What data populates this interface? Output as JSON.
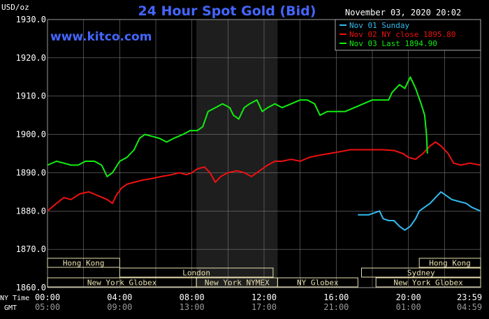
{
  "chart_data": {
    "type": "line",
    "title": "24 Hour Spot Gold (Bid)",
    "watermark": "www.kitco.com",
    "date_stamp": "November 03, 2020 20:02",
    "ylabel": "USD/oz",
    "ylim": [
      1860,
      1930
    ],
    "y_ticks": [
      "1930.0",
      "1920.0",
      "1910.0",
      "1900.0",
      "1890.0",
      "1880.0",
      "1870.0",
      "1860.0"
    ],
    "y_tick_values": [
      1930,
      1920,
      1910,
      1900,
      1890,
      1880,
      1870,
      1860
    ],
    "xlim": [
      0,
      24
    ],
    "x_ticks_ny": [
      "00:00",
      "04:00",
      "08:00",
      "12:00",
      "16:00",
      "20:00",
      "23:59"
    ],
    "x_ticks_gmt": [
      "05:00",
      "09:00",
      "13:00",
      "17:00",
      "21:00",
      "01:00",
      "04:59"
    ],
    "x_tick_values": [
      0,
      4,
      8,
      12,
      16,
      20,
      23.98
    ],
    "ny_time_label": "NY Time",
    "gmt_label": "GMT",
    "grid": true,
    "legend_position": "top-right",
    "shaded_region": [
      8.25,
      12.75
    ],
    "colors": {
      "sunday": "#33bbee",
      "close": "#ee1111",
      "last": "#11ee11",
      "grid": "#777777",
      "text": "#ffffff",
      "title": "#4466ff",
      "session_fill": "#e8e0b0",
      "session_text": "#2a2a2a",
      "shade": "#1e1e1e"
    },
    "series": [
      {
        "name": "Nov 01 Sunday",
        "legend_label": "Nov 01 Sunday",
        "color": "#33bbee",
        "points": [
          [
            17.2,
            1879
          ],
          [
            17.8,
            1879
          ],
          [
            18.4,
            1880
          ],
          [
            18.6,
            1878
          ],
          [
            18.9,
            1877.5
          ],
          [
            19.2,
            1877.5
          ],
          [
            19.5,
            1876
          ],
          [
            19.8,
            1875
          ],
          [
            20.1,
            1876
          ],
          [
            20.4,
            1878
          ],
          [
            20.6,
            1880
          ],
          [
            20.9,
            1881
          ],
          [
            21.2,
            1882
          ],
          [
            21.5,
            1883.5
          ],
          [
            21.8,
            1885
          ],
          [
            22.1,
            1884
          ],
          [
            22.4,
            1883
          ],
          [
            22.8,
            1882.5
          ],
          [
            23.2,
            1882
          ],
          [
            23.5,
            1881
          ],
          [
            23.98,
            1880
          ]
        ]
      },
      {
        "name": "Nov 02 NY close 1895.80",
        "legend_label": "Nov 02 NY close 1895.80",
        "color": "#ee1111",
        "points": [
          [
            0,
            1880
          ],
          [
            0.5,
            1882
          ],
          [
            0.9,
            1883.5
          ],
          [
            1.3,
            1883
          ],
          [
            1.8,
            1884.5
          ],
          [
            2.3,
            1885
          ],
          [
            2.8,
            1884
          ],
          [
            3.3,
            1883
          ],
          [
            3.6,
            1882
          ],
          [
            3.8,
            1884
          ],
          [
            4.1,
            1886
          ],
          [
            4.4,
            1887
          ],
          [
            4.8,
            1887.5
          ],
          [
            5.2,
            1888
          ],
          [
            5.8,
            1888.5
          ],
          [
            6.3,
            1889
          ],
          [
            6.9,
            1889.5
          ],
          [
            7.3,
            1890
          ],
          [
            7.7,
            1889.5
          ],
          [
            8.0,
            1890
          ],
          [
            8.3,
            1891
          ],
          [
            8.7,
            1891.5
          ],
          [
            9.0,
            1890
          ],
          [
            9.3,
            1887.5
          ],
          [
            9.6,
            1889
          ],
          [
            10.0,
            1890
          ],
          [
            10.5,
            1890.5
          ],
          [
            10.9,
            1890
          ],
          [
            11.3,
            1889
          ],
          [
            11.6,
            1890
          ],
          [
            11.9,
            1891
          ],
          [
            12.2,
            1892
          ],
          [
            12.6,
            1893
          ],
          [
            13.0,
            1893
          ],
          [
            13.5,
            1893.5
          ],
          [
            14.0,
            1893
          ],
          [
            14.5,
            1894
          ],
          [
            15.0,
            1894.5
          ],
          [
            15.6,
            1895
          ],
          [
            16.2,
            1895.5
          ],
          [
            16.8,
            1896
          ],
          [
            17.4,
            1896
          ],
          [
            18.0,
            1896
          ],
          [
            18.6,
            1896
          ],
          [
            19.2,
            1895.8
          ],
          [
            19.7,
            1895
          ],
          [
            20.0,
            1894
          ],
          [
            20.4,
            1893.5
          ],
          [
            20.8,
            1895
          ],
          [
            21.2,
            1897
          ],
          [
            21.5,
            1898
          ],
          [
            21.8,
            1897
          ],
          [
            22.2,
            1895
          ],
          [
            22.5,
            1892.5
          ],
          [
            22.9,
            1892
          ],
          [
            23.4,
            1892.5
          ],
          [
            23.98,
            1892
          ]
        ]
      },
      {
        "name": "Nov 03 Last 1894.90",
        "legend_label": "Nov 03 Last 1894.90",
        "color": "#11ee11",
        "points": [
          [
            0,
            1892
          ],
          [
            0.5,
            1893
          ],
          [
            0.9,
            1892.5
          ],
          [
            1.3,
            1892
          ],
          [
            1.7,
            1892
          ],
          [
            2.1,
            1893
          ],
          [
            2.6,
            1893
          ],
          [
            3.0,
            1892
          ],
          [
            3.3,
            1889
          ],
          [
            3.6,
            1890
          ],
          [
            4.0,
            1893
          ],
          [
            4.4,
            1894
          ],
          [
            4.8,
            1896
          ],
          [
            5.1,
            1899
          ],
          [
            5.4,
            1900
          ],
          [
            5.8,
            1899.5
          ],
          [
            6.2,
            1899
          ],
          [
            6.6,
            1898
          ],
          [
            7.0,
            1899
          ],
          [
            7.5,
            1900
          ],
          [
            7.9,
            1901
          ],
          [
            8.3,
            1901
          ],
          [
            8.6,
            1902
          ],
          [
            8.9,
            1906
          ],
          [
            9.3,
            1907
          ],
          [
            9.7,
            1908
          ],
          [
            10.1,
            1907
          ],
          [
            10.3,
            1905
          ],
          [
            10.6,
            1904
          ],
          [
            10.9,
            1907
          ],
          [
            11.2,
            1908
          ],
          [
            11.6,
            1909
          ],
          [
            11.9,
            1906
          ],
          [
            12.2,
            1907
          ],
          [
            12.6,
            1908
          ],
          [
            13.0,
            1907
          ],
          [
            13.5,
            1908
          ],
          [
            14.0,
            1909
          ],
          [
            14.4,
            1909
          ],
          [
            14.8,
            1908
          ],
          [
            15.1,
            1905
          ],
          [
            15.5,
            1906
          ],
          [
            16.0,
            1906
          ],
          [
            16.5,
            1906
          ],
          [
            17.0,
            1907
          ],
          [
            17.5,
            1908
          ],
          [
            18.0,
            1909
          ],
          [
            18.5,
            1909
          ],
          [
            18.9,
            1909
          ],
          [
            19.1,
            1911
          ],
          [
            19.5,
            1913
          ],
          [
            19.8,
            1912
          ],
          [
            20.1,
            1915
          ],
          [
            20.4,
            1912
          ],
          [
            20.7,
            1908
          ],
          [
            20.9,
            1905
          ],
          [
            21.0,
            1900
          ],
          [
            21.05,
            1895
          ]
        ]
      }
    ],
    "sessions": [
      {
        "label": "Hong Kong",
        "start": 0,
        "end": 4
      },
      {
        "label": "London",
        "start": 4,
        "end": 12.5
      },
      {
        "label": "New York Globex",
        "start": 0,
        "end": 8.25
      },
      {
        "label": "New York NYMEX",
        "start": 8.25,
        "end": 12.75
      },
      {
        "label": "NY Globex",
        "start": 12.75,
        "end": 17.2
      },
      {
        "label": "Hong Kong",
        "start": 20.6,
        "end": 24
      },
      {
        "label": "Sydney",
        "start": 17.4,
        "end": 24
      },
      {
        "label": "New York Globex",
        "start": 18.2,
        "end": 24
      }
    ]
  }
}
